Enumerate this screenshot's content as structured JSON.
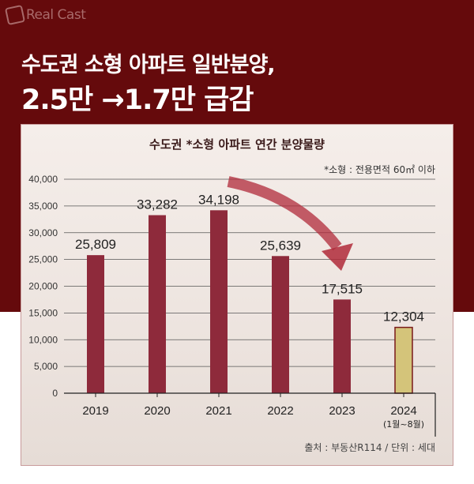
{
  "brand": "Real Cast",
  "headline": {
    "line1": "수도권 소형 아파트 일반분양,",
    "line2": "2.5만 →1.7만 급감"
  },
  "colors": {
    "background": "#650a0c",
    "bar": "#8e2a3b",
    "bar_highlight": "#d4c47a",
    "arrow": "#b02a3a"
  },
  "chart_data": {
    "type": "bar",
    "title": "수도권 *소형 아파트 연간 분양물량",
    "note": "*소형 : 전용면적 60㎡ 이하",
    "source": "출처 : 부동산R114 / 단위 : 세대",
    "categories": [
      "2019",
      "2020",
      "2021",
      "2022",
      "2023",
      "2024"
    ],
    "category_sublabels": [
      "",
      "",
      "",
      "",
      "",
      "(1월~8월)"
    ],
    "values": [
      25809,
      33282,
      34198,
      25639,
      17515,
      12304
    ],
    "data_labels": [
      "25,809",
      "33,282",
      "34,198",
      "25,639",
      "17,515",
      "12,304"
    ],
    "ylim": [
      0,
      40000
    ],
    "yticks": [
      "0",
      "5,000",
      "10,000",
      "15,000",
      "20,000",
      "25,000",
      "30,000",
      "35,000",
      "40,000"
    ],
    "grid": true,
    "highlight_index": 5,
    "annotation": "downward arrow from 2021 to 2023"
  }
}
